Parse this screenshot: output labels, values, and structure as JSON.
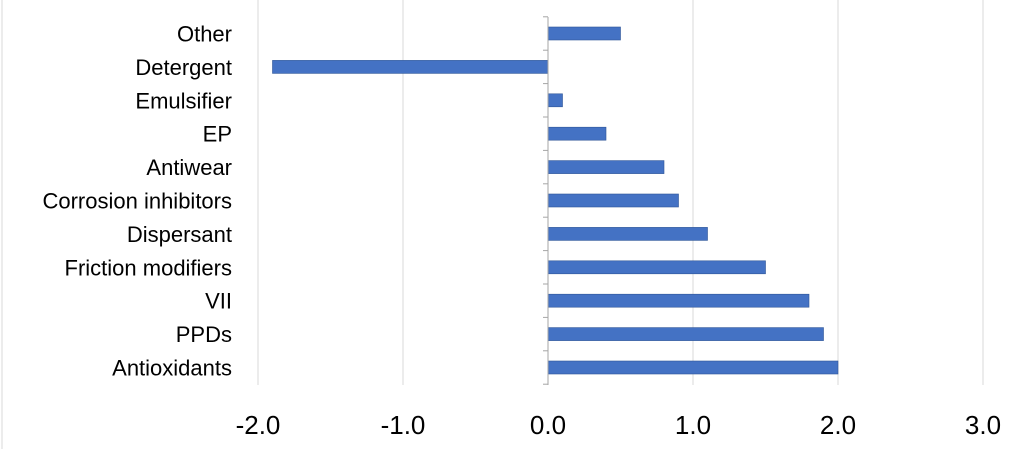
{
  "chart_data": {
    "type": "bar",
    "orientation": "horizontal",
    "categories": [
      "Other",
      "Detergent",
      "Emulsifier",
      "EP",
      "Antiwear",
      "Corrosion inhibitors",
      "Dispersant",
      "Friction modifiers",
      "VII",
      "PPDs",
      "Antioxidants"
    ],
    "values": [
      0.5,
      -1.9,
      0.1,
      0.4,
      0.8,
      0.9,
      1.1,
      1.5,
      1.8,
      1.9,
      2.0
    ],
    "title": "",
    "xlabel": "",
    "ylabel": "",
    "xlim": [
      -2.0,
      3.0
    ],
    "x_ticks": [
      "-2.0",
      "-1.0",
      "0.0",
      "1.0",
      "2.0",
      "3.0"
    ],
    "grid": "vertical",
    "legend": "none",
    "colors": {
      "bar_fill": "#4472C4",
      "bar_edge": "#2F5597",
      "gridline": "#D9D9D9",
      "axis": "#A6A6A6"
    }
  }
}
